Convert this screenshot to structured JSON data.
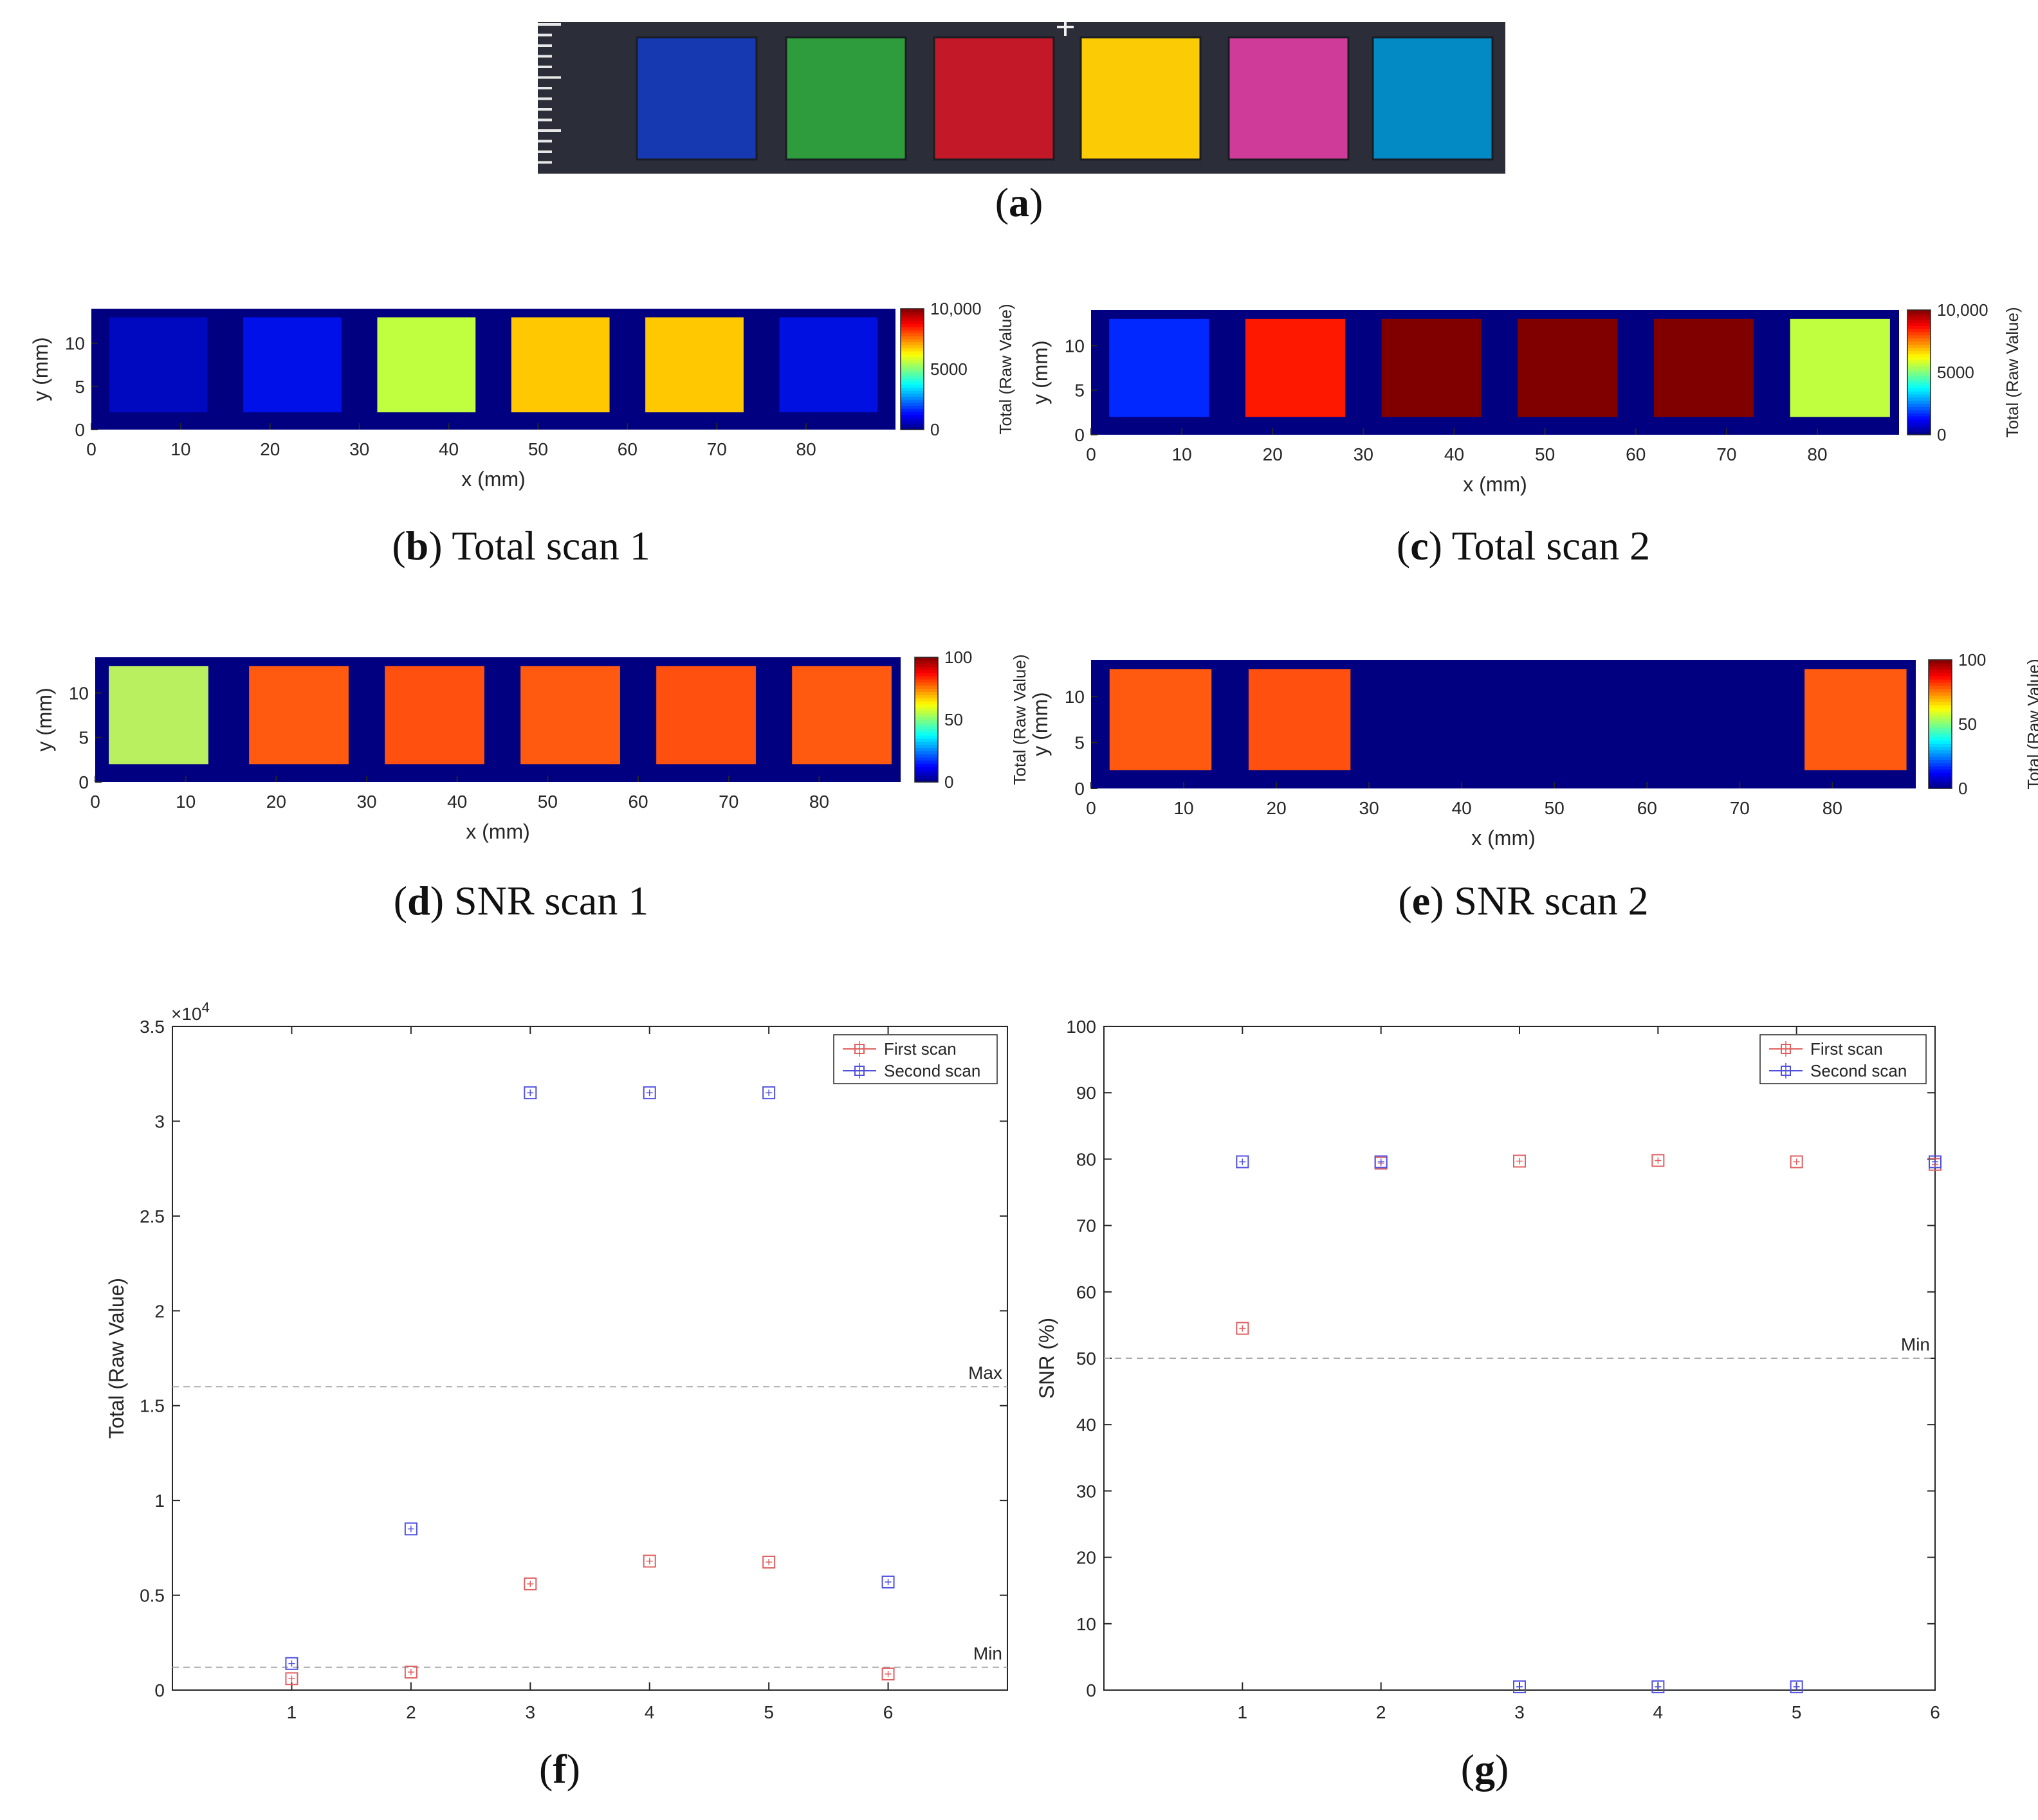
{
  "figure": {
    "captions": {
      "a": {
        "letter": "a",
        "text": ""
      },
      "b": {
        "letter": "b",
        "text": "Total scan 1"
      },
      "c": {
        "letter": "c",
        "text": "Total scan 2"
      },
      "d": {
        "letter": "d",
        "text": "SNR scan 1"
      },
      "e": {
        "letter": "e",
        "text": "SNR scan 2"
      },
      "f": {
        "letter": "f",
        "text": ""
      },
      "g": {
        "letter": "g",
        "text": ""
      }
    },
    "photo": {
      "background": "#2b2e38",
      "swatch_colors": [
        "#1638b0",
        "#2e9c3c",
        "#c21828",
        "#fbcb06",
        "#cf3b99",
        "#0389c4"
      ]
    }
  },
  "chart_data": [
    {
      "id": "b",
      "type": "heatmap",
      "title": "Total scan 1",
      "xlabel": "x (mm)",
      "ylabel": "y (mm)",
      "xlim": [
        0,
        90
      ],
      "ylim": [
        0,
        14
      ],
      "xticks": [
        "0",
        "10",
        "20",
        "30",
        "40",
        "50",
        "60",
        "70",
        "80"
      ],
      "yticks": [
        "0",
        "5",
        "10"
      ],
      "colorbar": {
        "label": "Total (Raw Value)",
        "ticks": [
          "0",
          "5000",
          "10,000"
        ],
        "range": [
          0,
          10000
        ]
      },
      "background_color": "#000080",
      "squares": [
        {
          "x": [
            2,
            13
          ],
          "y": [
            2,
            13
          ],
          "color": "#0008c0"
        },
        {
          "x": [
            17,
            28
          ],
          "y": [
            2,
            13
          ],
          "color": "#0010e8"
        },
        {
          "x": [
            32,
            43
          ],
          "y": [
            2,
            13
          ],
          "color": "#bfff40"
        },
        {
          "x": [
            47,
            58
          ],
          "y": [
            2,
            13
          ],
          "color": "#ffc800"
        },
        {
          "x": [
            62,
            73
          ],
          "y": [
            2,
            13
          ],
          "color": "#ffc800"
        },
        {
          "x": [
            77,
            88
          ],
          "y": [
            2,
            13
          ],
          "color": "#0010e0"
        }
      ]
    },
    {
      "id": "c",
      "type": "heatmap",
      "title": "Total scan 2",
      "xlabel": "x (mm)",
      "ylabel": "y (mm)",
      "xlim": [
        0,
        89
      ],
      "ylim": [
        0,
        14
      ],
      "xticks": [
        "0",
        "10",
        "20",
        "30",
        "40",
        "50",
        "60",
        "70",
        "80"
      ],
      "yticks": [
        "0",
        "5",
        "10"
      ],
      "colorbar": {
        "label": "Total (Raw Value)",
        "ticks": [
          "0",
          "5000",
          "10,000"
        ],
        "range": [
          0,
          10000
        ]
      },
      "background_color": "#000080",
      "squares": [
        {
          "x": [
            2,
            13
          ],
          "y": [
            2,
            13
          ],
          "color": "#0028ff"
        },
        {
          "x": [
            17,
            28
          ],
          "y": [
            2,
            13
          ],
          "color": "#ff1800"
        },
        {
          "x": [
            32,
            43
          ],
          "y": [
            2,
            13
          ],
          "color": "#800000"
        },
        {
          "x": [
            47,
            58
          ],
          "y": [
            2,
            13
          ],
          "color": "#800000"
        },
        {
          "x": [
            62,
            73
          ],
          "y": [
            2,
            13
          ],
          "color": "#800000"
        },
        {
          "x": [
            77,
            88
          ],
          "y": [
            2,
            13
          ],
          "color": "#bfff40"
        }
      ]
    },
    {
      "id": "d",
      "type": "heatmap",
      "title": "SNR scan 1",
      "xlabel": "x (mm)",
      "ylabel": "y (mm)",
      "xlim": [
        0,
        89
      ],
      "ylim": [
        0,
        14
      ],
      "xticks": [
        "0",
        "10",
        "20",
        "30",
        "40",
        "50",
        "60",
        "70",
        "80"
      ],
      "yticks": [
        "0",
        "5",
        "10"
      ],
      "colorbar": {
        "label": "Total (Raw Value)",
        "ticks": [
          "0",
          "50",
          "100"
        ],
        "range": [
          0,
          100
        ]
      },
      "background_color": "#000080",
      "squares": [
        {
          "x": [
            1.5,
            12.5
          ],
          "y": [
            2,
            13
          ],
          "color": "#b8f060"
        },
        {
          "x": [
            17,
            28
          ],
          "y": [
            2,
            13
          ],
          "color": "#ff5a10"
        },
        {
          "x": [
            32,
            43
          ],
          "y": [
            2,
            13
          ],
          "color": "#ff5010"
        },
        {
          "x": [
            47,
            58
          ],
          "y": [
            2,
            13
          ],
          "color": "#ff5a10"
        },
        {
          "x": [
            62,
            73
          ],
          "y": [
            2,
            13
          ],
          "color": "#ff5010"
        },
        {
          "x": [
            77,
            88
          ],
          "y": [
            2,
            13
          ],
          "color": "#ff5a10"
        }
      ]
    },
    {
      "id": "e",
      "type": "heatmap",
      "title": "SNR scan 2",
      "xlabel": "x (mm)",
      "ylabel": "y (mm)",
      "xlim": [
        0,
        89
      ],
      "ylim": [
        0,
        14
      ],
      "xticks": [
        "0",
        "10",
        "20",
        "30",
        "40",
        "50",
        "60",
        "70",
        "80"
      ],
      "yticks": [
        "0",
        "5",
        "10"
      ],
      "colorbar": {
        "label": "Total (Raw Value)",
        "ticks": [
          "0",
          "50",
          "100"
        ],
        "range": [
          0,
          100
        ]
      },
      "background_color": "#000080",
      "squares": [
        {
          "x": [
            2,
            13
          ],
          "y": [
            2,
            13
          ],
          "color": "#ff5a10"
        },
        {
          "x": [
            17,
            28
          ],
          "y": [
            2,
            13
          ],
          "color": "#ff5010"
        },
        {
          "x": [
            77,
            88
          ],
          "y": [
            2,
            13
          ],
          "color": "#ff5a10"
        }
      ]
    },
    {
      "id": "f",
      "type": "scatter",
      "title": "",
      "xlabel": "",
      "ylabel": "Total (Raw Value)",
      "xlim": [
        0,
        7
      ],
      "ylim": [
        0,
        35000
      ],
      "xticks": [
        1,
        2,
        3,
        4,
        5,
        6
      ],
      "yticks": [
        {
          "v": 0,
          "t": "0"
        },
        {
          "v": 5000,
          "t": "0.5"
        },
        {
          "v": 10000,
          "t": "1"
        },
        {
          "v": 15000,
          "t": "1.5"
        },
        {
          "v": 20000,
          "t": "2"
        },
        {
          "v": 25000,
          "t": "2.5"
        },
        {
          "v": 30000,
          "t": "3"
        },
        {
          "v": 35000,
          "t": "3.5"
        }
      ],
      "y_exponent": "×10",
      "y_exponent_power": "4",
      "reference_lines": [
        {
          "label": "Max",
          "value": 16000
        },
        {
          "label": "Min",
          "value": 1200
        }
      ],
      "series": [
        {
          "name": "First scan",
          "color": "#e06060",
          "x": [
            1,
            2,
            3,
            4,
            5,
            6
          ],
          "values": [
            600,
            950,
            5600,
            6800,
            6750,
            850
          ]
        },
        {
          "name": "Second scan",
          "color": "#5050e0",
          "x": [
            1,
            2,
            3,
            4,
            5,
            6
          ],
          "values": [
            1400,
            8500,
            31500,
            31500,
            31500,
            5700
          ]
        }
      ]
    },
    {
      "id": "g",
      "type": "scatter",
      "title": "",
      "xlabel": "",
      "ylabel": "SNR (%)",
      "xlim": [
        0,
        6
      ],
      "ylim": [
        0,
        100
      ],
      "xticks": [
        1,
        2,
        3,
        4,
        5,
        6
      ],
      "yticks": [
        {
          "v": 0,
          "t": "0"
        },
        {
          "v": 10,
          "t": "10"
        },
        {
          "v": 20,
          "t": "20"
        },
        {
          "v": 30,
          "t": "30"
        },
        {
          "v": 40,
          "t": "40"
        },
        {
          "v": 50,
          "t": "50"
        },
        {
          "v": 60,
          "t": "60"
        },
        {
          "v": 70,
          "t": "70"
        },
        {
          "v": 80,
          "t": "80"
        },
        {
          "v": 90,
          "t": "90"
        },
        {
          "v": 100,
          "t": "100"
        }
      ],
      "reference_lines": [
        {
          "label": "Min",
          "value": 50
        }
      ],
      "series": [
        {
          "name": "First scan",
          "color": "#e06060",
          "x": [
            1,
            2,
            3,
            4,
            5,
            6
          ],
          "values": [
            54.5,
            79.4,
            79.7,
            79.8,
            79.6,
            79.2
          ]
        },
        {
          "name": "Second scan",
          "color": "#5050e0",
          "x": [
            1,
            2,
            3,
            4,
            5,
            6
          ],
          "values": [
            79.6,
            79.6,
            0.5,
            0.5,
            0.5,
            79.6
          ]
        }
      ]
    }
  ]
}
